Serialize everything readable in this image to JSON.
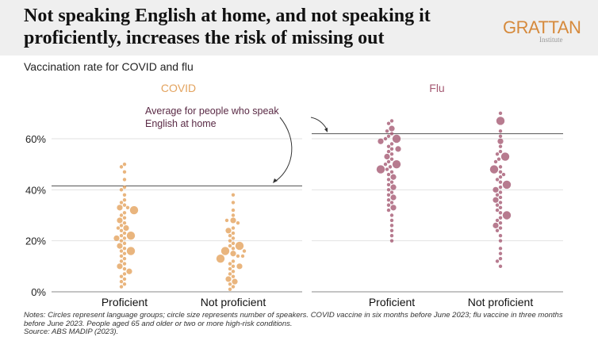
{
  "title": "Not speaking English at home, and not speaking it proficiently, increases the risk of missing out",
  "logo": {
    "text": "GRATTAN",
    "sub": "Institute"
  },
  "subtitle": "Vaccination rate for COVID and flu",
  "notes": "Notes: Circles represent language groups; circle size represents number of speakers.  COVID vaccine in six months before June 2023; flu vaccine in three months before June 2023. People aged 65 and older or two or more high-risk conditions.",
  "source": "Source: ABS MADIP (2023).",
  "chart_data": {
    "type": "scatter",
    "subtype": "beeswarm",
    "ylim": [
      0,
      70
    ],
    "yticks": [
      0,
      20,
      40,
      60
    ],
    "ytick_labels": [
      "0%",
      "20%",
      "40%",
      "60%"
    ],
    "grid": true,
    "annotation": "Average for people who speak English at home",
    "panels": [
      {
        "name": "COVID",
        "color": "#e3a35e",
        "average": 41.5,
        "categories": [
          "Proficient",
          "Not proficient"
        ],
        "groups": [
          {
            "values": [
              50,
              49,
              47,
              44,
              41,
              40,
              38,
              36,
              35,
              34,
              33,
              33,
              32,
              31,
              30,
              29,
              28,
              27,
              26,
              25,
              25,
              24,
              23,
              22,
              22,
              21,
              21,
              20,
              19,
              18,
              17,
              16,
              16,
              15,
              14,
              13,
              12,
              11,
              10,
              9,
              8,
              7,
              6,
              5,
              4,
              3,
              2
            ],
            "sizes": [
              1,
              1,
              1,
              1,
              1,
              1,
              1,
              1,
              1,
              1,
              2,
              1,
              3,
              1,
              1,
              1,
              2,
              1,
              1,
              2,
              1,
              1,
              1,
              3,
              1,
              2,
              1,
              1,
              1,
              2,
              1,
              3,
              1,
              1,
              1,
              1,
              1,
              1,
              2,
              1,
              2,
              1,
              1,
              1,
              1,
              1,
              1
            ]
          },
          {
            "values": [
              38,
              35,
              32,
              30,
              28,
              28,
              27,
              25,
              24,
              23,
              22,
              21,
              20,
              19,
              18,
              18,
              17,
              16,
              16,
              15,
              14,
              14,
              13,
              12,
              11,
              10,
              10,
              9,
              8,
              7,
              6,
              5,
              4,
              3,
              2,
              1
            ],
            "sizes": [
              1,
              1,
              1,
              1,
              2,
              1,
              1,
              1,
              2,
              1,
              1,
              1,
              1,
              1,
              3,
              1,
              1,
              3,
              1,
              2,
              1,
              1,
              3,
              1,
              1,
              1,
              2,
              1,
              1,
              1,
              1,
              2,
              2,
              1,
              1,
              1
            ]
          }
        ]
      },
      {
        "name": "Flu",
        "color": "#a55a73",
        "average": 62,
        "categories": [
          "Proficient",
          "Not proficient"
        ],
        "groups": [
          {
            "values": [
              67,
              66,
              64,
              63,
              62,
              61,
              60,
              60,
              59,
              58,
              57,
              56,
              56,
              55,
              54,
              53,
              52,
              51,
              50,
              50,
              49,
              48,
              48,
              47,
              46,
              45,
              44,
              43,
              42,
              41,
              40,
              39,
              38,
              37,
              36,
              35,
              34,
              33,
              32,
              30,
              28,
              26,
              24,
              22,
              20
            ],
            "sizes": [
              1,
              1,
              2,
              1,
              1,
              1,
              3,
              1,
              2,
              1,
              1,
              1,
              2,
              1,
              1,
              2,
              1,
              1,
              3,
              1,
              1,
              3,
              1,
              1,
              1,
              2,
              1,
              1,
              1,
              2,
              1,
              1,
              1,
              2,
              1,
              1,
              1,
              2,
              1,
              1,
              1,
              1,
              1,
              1,
              1
            ]
          },
          {
            "values": [
              70,
              67,
              63,
              61,
              59,
              57,
              55,
              54,
              53,
              52,
              51,
              49,
              48,
              47,
              46,
              45,
              44,
              43,
              42,
              41,
              40,
              39,
              38,
              37,
              36,
              35,
              34,
              33,
              32,
              31,
              30,
              29,
              28,
              27,
              26,
              25,
              24,
              22,
              20,
              17,
              15,
              13,
              12,
              10
            ],
            "sizes": [
              1,
              3,
              1,
              1,
              2,
              1,
              1,
              1,
              3,
              1,
              1,
              1,
              3,
              1,
              1,
              1,
              1,
              1,
              3,
              1,
              2,
              1,
              1,
              1,
              2,
              1,
              1,
              1,
              1,
              1,
              3,
              1,
              1,
              1,
              2,
              1,
              1,
              1,
              1,
              1,
              1,
              1,
              1,
              1
            ]
          }
        ]
      }
    ]
  }
}
